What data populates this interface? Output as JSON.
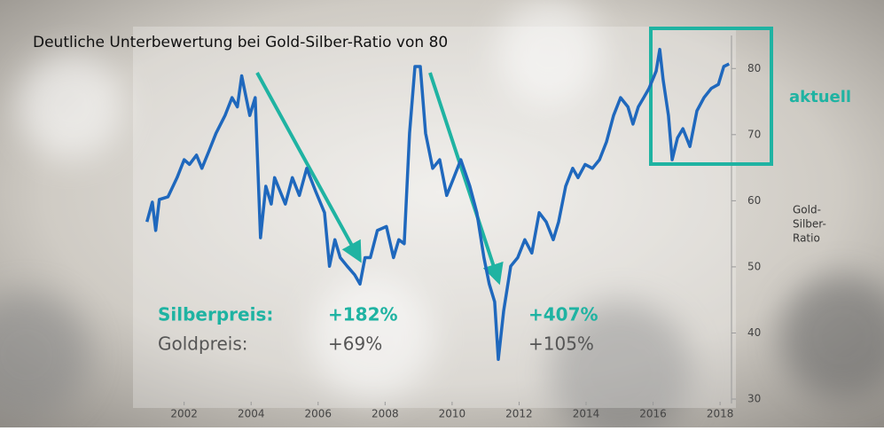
{
  "chart_data": {
    "type": "line",
    "title": "Deutliche Unterbewertung bei Gold-Silber-Ratio von 80",
    "y_label": [
      "Gold-",
      "Silber-",
      "Ratio"
    ],
    "highlight_label": "aktuell",
    "annotations": [
      {
        "text": "Silberpreis:",
        "color": "#1fb3a2"
      },
      {
        "text": "+182%",
        "color": "#1fb3a2"
      },
      {
        "text": "+407%",
        "color": "#1fb3a2"
      },
      {
        "text": "Goldpreis:",
        "color": "#555555"
      },
      {
        "text": "+69%",
        "color": "#555555"
      },
      {
        "text": "+105%",
        "color": "#555555"
      }
    ],
    "color": "#1f68bd",
    "x": [
      2000.89,
      2001.05,
      2001.15,
      2001.26,
      2001.52,
      2001.79,
      2002.0,
      2002.16,
      2002.37,
      2002.53,
      2002.74,
      2002.95,
      2003.22,
      2003.43,
      2003.59,
      2003.72,
      2003.85,
      2003.96,
      2004.12,
      2004.28,
      2004.44,
      2004.6,
      2004.7,
      2004.86,
      2005.02,
      2005.23,
      2005.44,
      2005.66,
      2005.92,
      2006.19,
      2006.34,
      2006.5,
      2006.66,
      2006.87,
      2007.09,
      2007.25,
      2007.4,
      2007.56,
      2007.77,
      2008.04,
      2008.25,
      2008.41,
      2008.57,
      2008.73,
      2008.89,
      2009.05,
      2009.21,
      2009.42,
      2009.63,
      2009.84,
      2010.05,
      2010.26,
      2010.53,
      2010.74,
      2010.95,
      2011.11,
      2011.27,
      2011.38,
      2011.54,
      2011.75,
      2011.96,
      2012.17,
      2012.38,
      2012.6,
      2012.81,
      2013.02,
      2013.18,
      2013.39,
      2013.6,
      2013.76,
      2013.97,
      2014.19,
      2014.4,
      2014.61,
      2014.82,
      2015.03,
      2015.25,
      2015.4,
      2015.56,
      2015.72,
      2015.88,
      2016.09,
      2016.2,
      2016.3,
      2016.46,
      2016.57,
      2016.73,
      2016.89,
      2017.1,
      2017.31,
      2017.52,
      2017.74,
      2017.95,
      2018.11,
      2018.27
    ],
    "values": [
      56.8,
      59.8,
      55.5,
      60.2,
      60.6,
      63.5,
      66.2,
      65.5,
      66.9,
      64.9,
      67.5,
      70.2,
      72.9,
      75.6,
      74.2,
      78.9,
      75.6,
      72.9,
      75.6,
      54.4,
      62.2,
      59.5,
      63.5,
      61.5,
      59.5,
      63.5,
      60.8,
      64.9,
      61.5,
      58.2,
      50.1,
      54.1,
      51.4,
      50.1,
      48.8,
      47.4,
      51.4,
      51.4,
      55.5,
      56.1,
      51.4,
      54.1,
      53.5,
      70.2,
      80.3,
      80.3,
      70.2,
      64.9,
      66.2,
      60.8,
      63.5,
      66.2,
      62.2,
      58.2,
      51.4,
      47.4,
      44.7,
      36.0,
      43.4,
      50.1,
      51.4,
      54.1,
      52.1,
      58.2,
      56.8,
      54.1,
      56.8,
      62.2,
      64.9,
      63.5,
      65.5,
      64.9,
      66.2,
      68.9,
      72.9,
      75.6,
      74.2,
      71.6,
      74.2,
      75.6,
      77.0,
      79.6,
      82.9,
      78.3,
      72.9,
      66.2,
      69.5,
      70.9,
      68.2,
      73.6,
      75.6,
      77.0,
      77.6,
      80.3,
      80.7
    ],
    "xlim": [
      2000.5,
      2018.5
    ],
    "xticks": [
      2002,
      2004,
      2006,
      2008,
      2010,
      2012,
      2014,
      2016,
      2018
    ],
    "ylim": [
      30,
      85
    ],
    "yticks": [
      30,
      40,
      50,
      60,
      70,
      80
    ]
  }
}
